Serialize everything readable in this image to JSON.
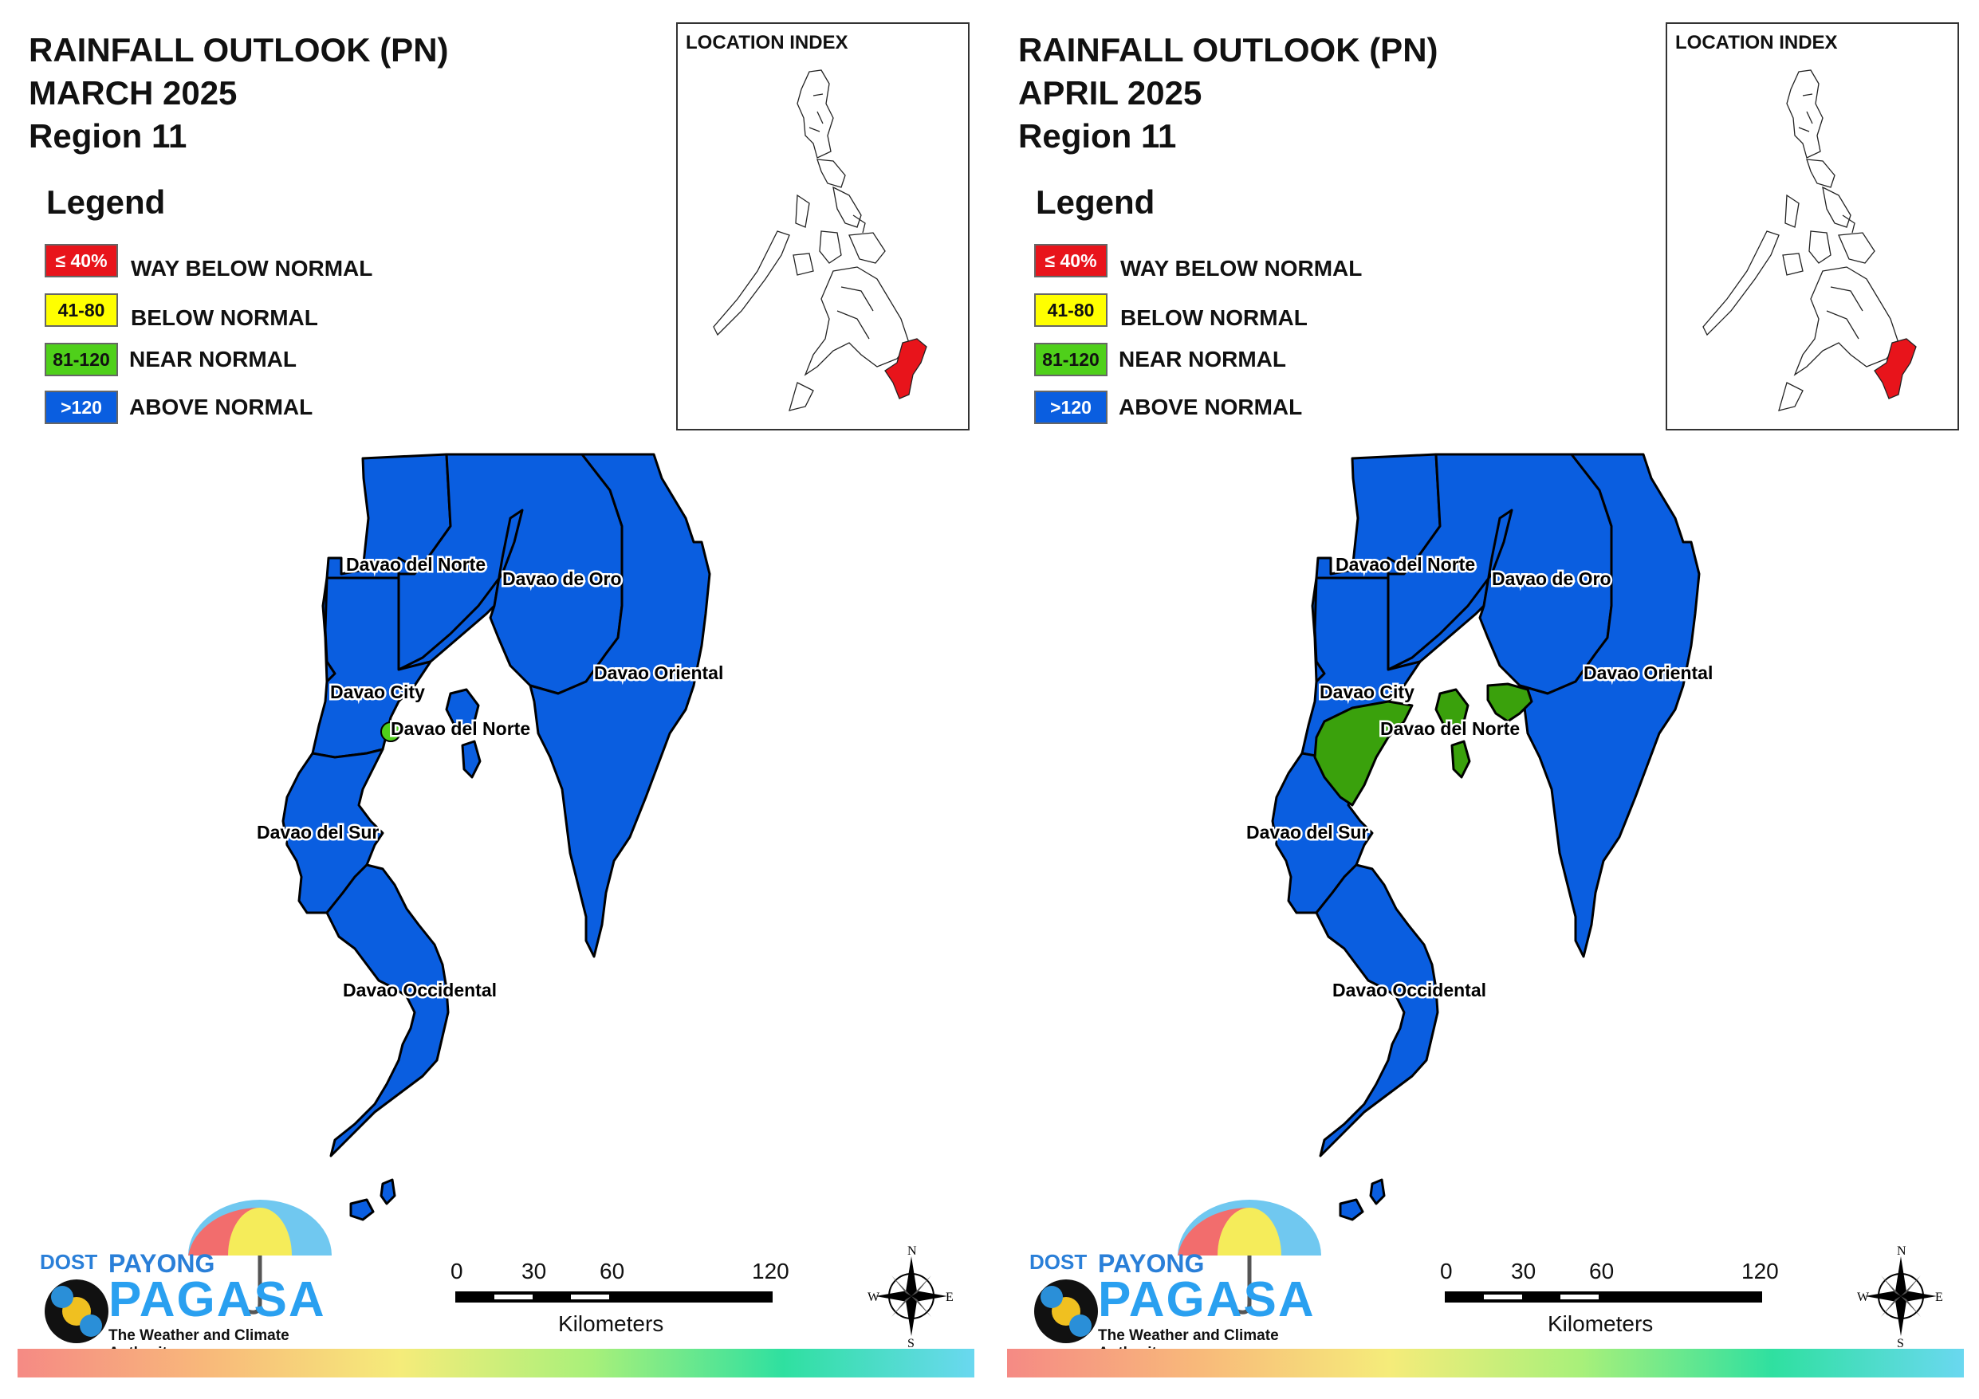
{
  "panels": [
    {
      "title_line1": "RAINFALL OUTLOOK (PN)",
      "title_line2": "MARCH 2025",
      "title_line3": "Region 11",
      "month_key": "march"
    },
    {
      "title_line1": "RAINFALL OUTLOOK (PN)",
      "title_line2": "APRIL 2025",
      "title_line3": "Region 11",
      "month_key": "april"
    }
  ],
  "legend": {
    "title": "Legend",
    "items": [
      {
        "code": "≤ 40%",
        "label": "WAY BELOW NORMAL",
        "color": "#e8141b",
        "text_color": "#ffffff"
      },
      {
        "code": "41-80",
        "label": "BELOW NORMAL",
        "color": "#ffff00",
        "text_color": "#111111"
      },
      {
        "code": "81-120",
        "label": "NEAR NORMAL",
        "color": "#4fd01a",
        "text_color": "#111111"
      },
      {
        "code": ">120",
        "label": "ABOVE NORMAL",
        "color": "#0a5ee0",
        "text_color": "#ffffff"
      }
    ]
  },
  "inset": {
    "title": "LOCATION INDEX",
    "highlight_color": "#e8141b"
  },
  "map_labels": {
    "davao_del_norte": "Davao del Norte",
    "davao_de_oro": "Davao de Oro",
    "davao_oriental": "Davao Oriental",
    "davao_city": "Davao City",
    "davao_del_norte_igacos": "Davao del Norte",
    "davao_del_sur": "Davao del Sur",
    "davao_occidental": "Davao Occidental"
  },
  "colors": {
    "above_normal": "#0a5ee0",
    "near_normal": "#3aa10c",
    "near_normal_light": "#4fd01a"
  },
  "scale_bar": {
    "ticks": [
      "0",
      "30",
      "60",
      "120"
    ],
    "unit": "Kilometers"
  },
  "compass": {
    "n": "N",
    "s": "S",
    "e": "E",
    "w": "W"
  },
  "logo": {
    "dost": "DOST",
    "payong": "PAYONG",
    "pagasa": "PAGASA",
    "tagline": "The Weather and Climate Authority"
  }
}
